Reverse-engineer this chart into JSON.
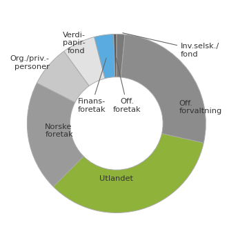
{
  "segments": [
    {
      "label": "Inv.selsk./\nfond",
      "value": 1.5,
      "color": "#7a7a7a"
    },
    {
      "label": "Off.\nforvaltning",
      "value": 27.0,
      "color": "#8c8c8c"
    },
    {
      "label": "Utlandet",
      "value": 34.0,
      "color": "#8fb23a"
    },
    {
      "label": "Norske\nforetak",
      "value": 20.0,
      "color": "#9a9a9a"
    },
    {
      "label": "Org./priv.-\npersoner",
      "value": 7.5,
      "color": "#c8c8c8"
    },
    {
      "label": "Verdi-\npapir-\nfond",
      "value": 6.0,
      "color": "#e2e2e2"
    },
    {
      "label": "Finans-\nforetak",
      "value": 3.5,
      "color": "#5aace0"
    },
    {
      "label": "Off.\nforetak",
      "value": 0.5,
      "color": "#5a5a5a"
    }
  ],
  "start_angle": 90,
  "donut_width": 0.48,
  "bg_color": "#ffffff",
  "font_size": 8.2,
  "text_color": "#333333",
  "line_color": "#666666"
}
